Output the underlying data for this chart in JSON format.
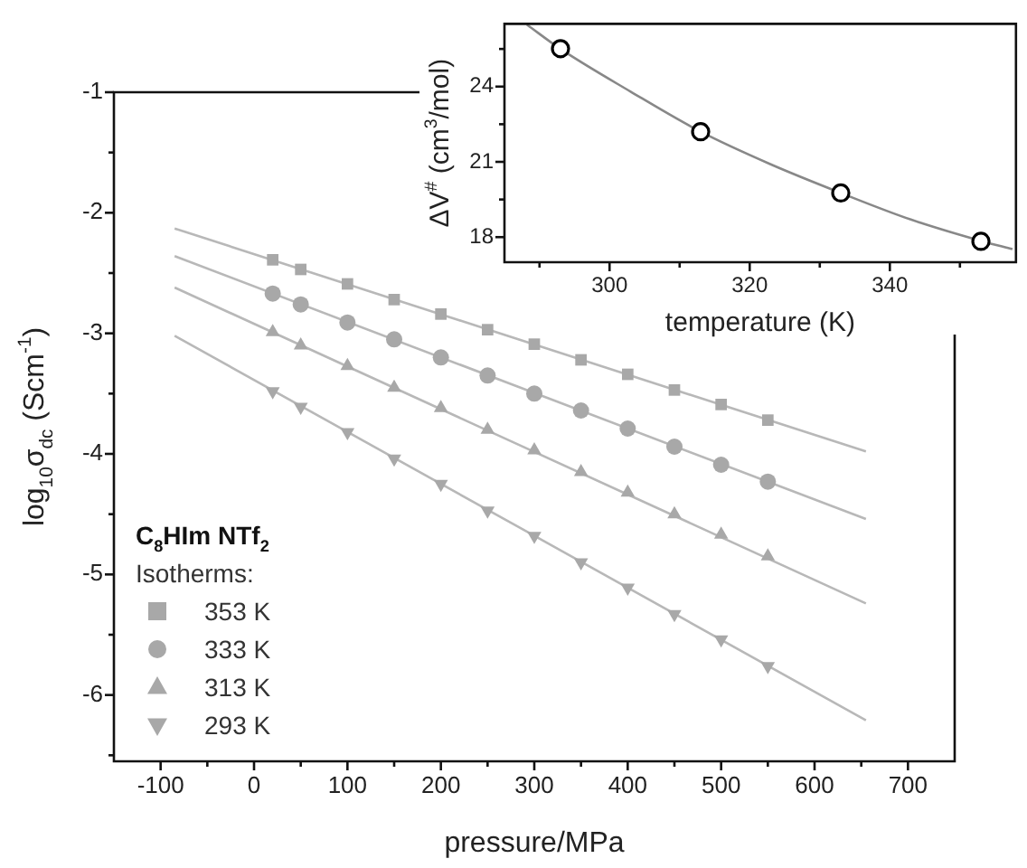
{
  "chart_data": [
    {
      "type": "scatter",
      "xlabel": "pressure/MPa",
      "ylabel": "log$_{10}$σ$_{dc}$ (Scm$^{-1}$)",
      "legend_title": "C$_{8}$HIm NTf$_{2}$",
      "annotations": [
        "Isotherms:"
      ],
      "legend": "bottom left",
      "grid": false,
      "xlim": [
        -150,
        750
      ],
      "xticks": [
        -100,
        {
          "value": -50,
          "label": null
        },
        0,
        {
          "value": 50,
          "label": null
        },
        100,
        {
          "value": 150,
          "label": null
        },
        200,
        {
          "value": 250,
          "label": null
        },
        300,
        {
          "value": 350,
          "label": null
        },
        400,
        {
          "value": 450,
          "label": null
        },
        500,
        {
          "value": 550,
          "label": null
        },
        600,
        {
          "value": 650,
          "label": null
        },
        700
      ],
      "ylim": [
        -6.55,
        -1
      ],
      "yticks": [
        -1,
        {
          "value": -1.5,
          "label": null
        },
        -2,
        {
          "value": -2.5,
          "label": null
        },
        -3,
        {
          "value": -3.5,
          "label": null
        },
        -4,
        {
          "value": -4.5,
          "label": null
        },
        -5,
        {
          "value": -5.5,
          "label": null
        },
        -6,
        {
          "value": -6.5,
          "label": null
        }
      ],
      "series": [
        {
          "name": "353 K",
          "type": "scatter",
          "marker": "square",
          "color": "#a8a8a8",
          "x": [
            20,
            50,
            100,
            150,
            200,
            250,
            300,
            350,
            400,
            450,
            500,
            550
          ],
          "values": [
            -2.39,
            -2.47,
            -2.59,
            -2.72,
            -2.84,
            -2.97,
            -3.09,
            -3.22,
            -3.34,
            -3.47,
            -3.59,
            -3.72
          ]
        },
        {
          "name": "333 K",
          "type": "scatter",
          "marker": "circle",
          "color": "#a8a8a8",
          "x": [
            20,
            50,
            100,
            150,
            200,
            250,
            300,
            350,
            400,
            450,
            500,
            550
          ],
          "values": [
            -2.67,
            -2.76,
            -2.91,
            -3.05,
            -3.2,
            -3.35,
            -3.5,
            -3.64,
            -3.79,
            -3.94,
            -4.09,
            -4.23
          ]
        },
        {
          "name": "313 K",
          "type": "scatter",
          "marker": "triangle",
          "color": "#a8a8a8",
          "x": [
            20,
            50,
            100,
            150,
            200,
            250,
            300,
            350,
            400,
            450,
            500,
            550
          ],
          "values": [
            -2.99,
            -3.1,
            -3.27,
            -3.45,
            -3.62,
            -3.8,
            -3.97,
            -4.15,
            -4.32,
            -4.5,
            -4.67,
            -4.85
          ]
        },
        {
          "name": "293 K",
          "type": "scatter",
          "marker": "triangle-down",
          "color": "#a8a8a8",
          "x": [
            20,
            50,
            100,
            150,
            200,
            250,
            300,
            350,
            400,
            450,
            500,
            550
          ],
          "values": [
            -3.48,
            -3.61,
            -3.82,
            -4.04,
            -4.25,
            -4.47,
            -4.68,
            -4.9,
            -5.11,
            -5.33,
            -5.54,
            -5.76
          ]
        },
        {
          "type": "line",
          "marker": "none",
          "color": "#b8b8b8",
          "x": [
            -85,
            655
          ],
          "values": [
            -2.13,
            -3.98
          ]
        },
        {
          "type": "line",
          "marker": "none",
          "color": "#b8b8b8",
          "x": [
            -85,
            655
          ],
          "values": [
            -2.36,
            -4.54
          ]
        },
        {
          "type": "line",
          "marker": "none",
          "color": "#b8b8b8",
          "x": [
            -85,
            655
          ],
          "values": [
            -2.62,
            -5.24
          ]
        },
        {
          "type": "line",
          "marker": "none",
          "color": "#b8b8b8",
          "x": [
            -85,
            655
          ],
          "values": [
            -3.02,
            -6.21
          ]
        }
      ]
    },
    {
      "type": "scatter",
      "xlabel": "temperature (K)",
      "ylabel": "ΔV$^{#}$ (cm$^{3}$/mol)",
      "grid": false,
      "xlim": [
        285,
        358
      ],
      "xticks": [
        {
          "value": 290,
          "label": null
        },
        300,
        {
          "value": 310,
          "label": null
        },
        320,
        {
          "value": 330,
          "label": null
        },
        340,
        {
          "value": 350,
          "label": null
        }
      ],
      "ylim": [
        17,
        26.5
      ],
      "yticks": [
        18,
        {
          "value": 19.5,
          "label": null
        },
        21,
        {
          "value": 22.5,
          "label": null
        },
        24,
        {
          "value": 25.5,
          "label": null
        }
      ],
      "series": [
        {
          "type": "line",
          "marker": "none",
          "color": "#888888",
          "x": [
            288.2,
            293,
            303,
            313,
            323,
            333,
            343,
            353,
            357.5
          ],
          "values": [
            26.47,
            25.5,
            23.8,
            22.2,
            20.9,
            19.76,
            18.7,
            17.85,
            17.52
          ]
        },
        {
          "type": "scatter",
          "marker": "circle",
          "color": "#000000",
          "x": [
            293,
            313,
            333,
            353
          ],
          "values": [
            25.51,
            22.2,
            19.76,
            17.83
          ]
        }
      ]
    }
  ]
}
